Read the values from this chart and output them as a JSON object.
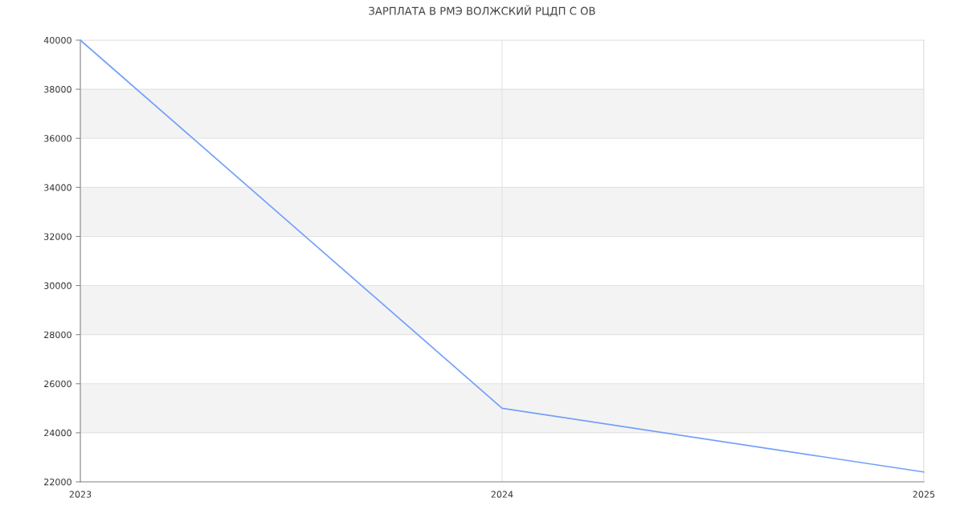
{
  "chart_data": {
    "type": "line",
    "title": "ЗАРПЛАТА В РМЭ ВОЛЖСКИЙ РЦДП С ОВ",
    "x": [
      2023,
      2024,
      2025
    ],
    "series": [
      {
        "color": "#73a0fa",
        "values": [
          40000,
          25000,
          22400
        ]
      }
    ],
    "xlim": [
      2023,
      2025
    ],
    "xticks": [
      2023,
      2024,
      2025
    ],
    "ylim": [
      22000,
      40000
    ],
    "yticks": [
      22000,
      24000,
      26000,
      28000,
      30000,
      32000,
      34000,
      36000,
      38000,
      40000
    ],
    "bands": [
      {
        "axis": "y",
        "from": 24000,
        "to": 26000,
        "color": "#f3f3f3"
      },
      {
        "axis": "y",
        "from": 28000,
        "to": 30000,
        "color": "#f3f3f3"
      },
      {
        "axis": "y",
        "from": 32000,
        "to": 34000,
        "color": "#f3f3f3"
      },
      {
        "axis": "y",
        "from": 36000,
        "to": 38000,
        "color": "#f3f3f3"
      }
    ],
    "grid": true,
    "marker": "none",
    "line_style": "solid"
  }
}
